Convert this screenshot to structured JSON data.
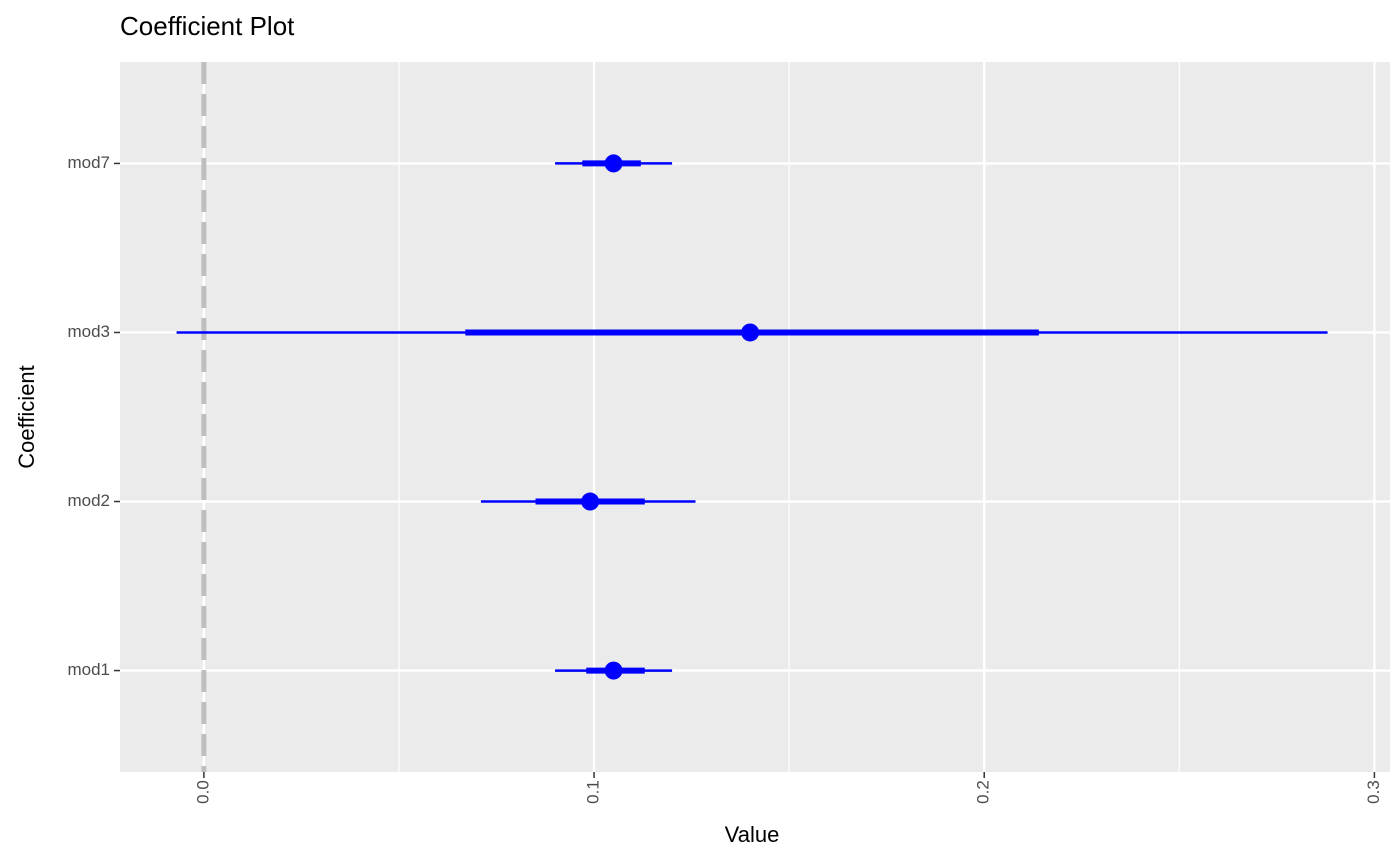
{
  "chart_data": {
    "type": "coefplot",
    "title": "Coefficient Plot",
    "x_label": "Value",
    "y_label": "Coefficient",
    "categories": [
      "mod1",
      "mod2",
      "mod3",
      "mod7"
    ],
    "values": [
      0.105,
      0.099,
      0.14,
      0.105
    ],
    "inner_low": [
      0.098,
      0.085,
      0.067,
      0.097
    ],
    "inner_high": [
      0.113,
      0.113,
      0.214,
      0.112
    ],
    "outer_low": [
      0.09,
      0.071,
      -0.007,
      0.09
    ],
    "outer_high": [
      0.12,
      0.126,
      0.288,
      0.12
    ],
    "color": "#0000ff",
    "xlim": [
      -0.0215,
      0.304
    ],
    "xticks": [
      {
        "value": 0,
        "label": "0.0"
      },
      0.1,
      0.2,
      0.3
    ],
    "minor_xticks": [
      0.05,
      0.15,
      0.25
    ],
    "vline": 0,
    "grid": true
  }
}
